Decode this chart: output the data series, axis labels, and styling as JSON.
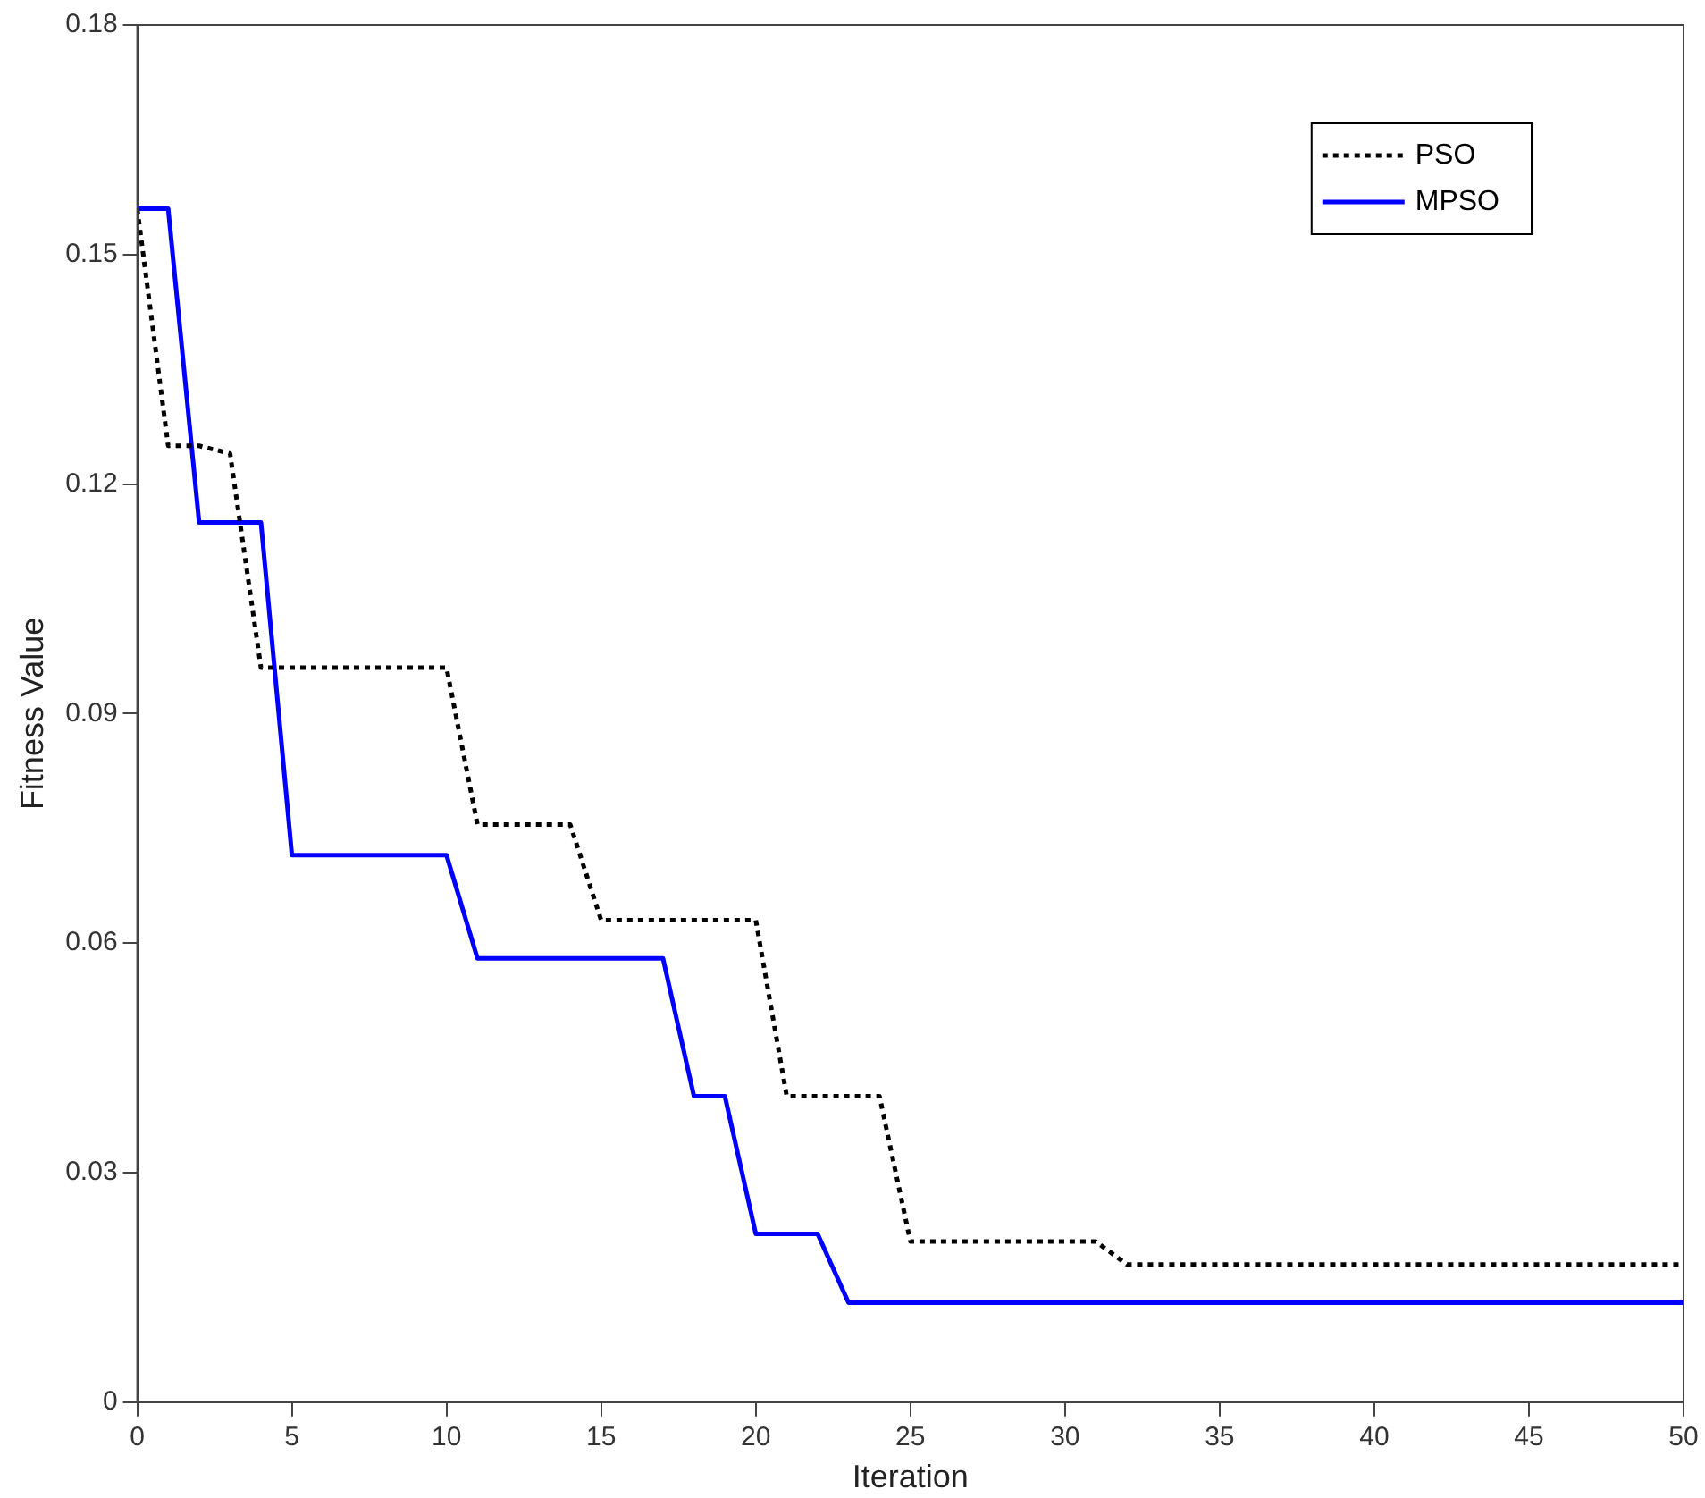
{
  "chart_data": {
    "type": "line",
    "xlabel": "Iteration",
    "ylabel": "Fitness Value",
    "xlim": [
      0,
      50
    ],
    "xticks": [
      0,
      5,
      10,
      15,
      20,
      25,
      30,
      35,
      40,
      45,
      50
    ],
    "ylim": [
      0,
      0.18
    ],
    "yticks": [
      0,
      0.03,
      0.06,
      0.09,
      0.12,
      0.15,
      0.18
    ],
    "grid": false,
    "legend": "top right",
    "marker": "none",
    "series": [
      {
        "name": "PSO",
        "color": "#000000",
        "line_style": "dotted",
        "x": [
          0,
          1,
          2,
          3,
          4,
          10,
          11,
          14,
          15,
          20,
          21,
          24,
          25,
          31,
          32,
          50
        ],
        "values": [
          0.156,
          0.125,
          0.125,
          0.124,
          0.096,
          0.096,
          0.0755,
          0.0755,
          0.063,
          0.063,
          0.04,
          0.04,
          0.021,
          0.021,
          0.018,
          0.018
        ]
      },
      {
        "name": "MPSO",
        "color": "#0000ff",
        "line_style": "solid",
        "x": [
          0,
          1,
          2,
          4,
          5,
          10,
          11,
          17,
          18,
          19,
          20,
          22,
          23,
          50
        ],
        "values": [
          0.156,
          0.156,
          0.115,
          0.115,
          0.0715,
          0.0715,
          0.058,
          0.058,
          0.04,
          0.04,
          0.022,
          0.022,
          0.013,
          0.013
        ]
      }
    ]
  }
}
